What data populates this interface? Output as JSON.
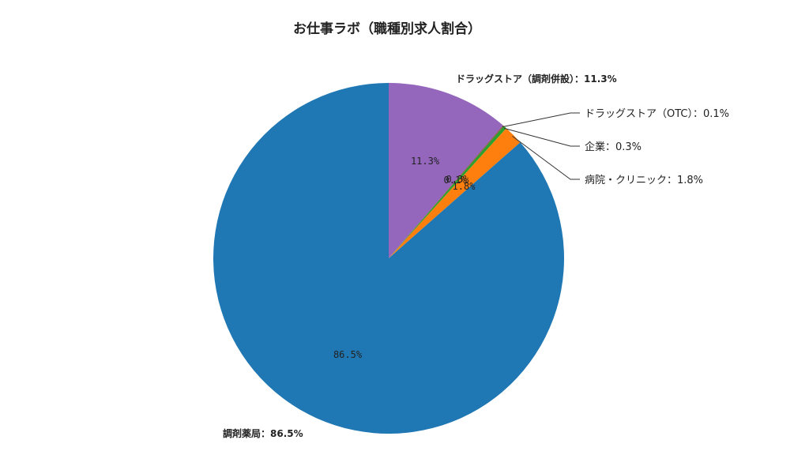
{
  "chart_data": {
    "type": "pie",
    "title": "お仕事ラボ（職種別求人割合）",
    "start_angle_deg": 90,
    "direction": "clockwise",
    "slices": [
      {
        "name": "ドラッグストア（調剤併設）",
        "value": 11.3,
        "color": "#9467bd",
        "inner_label": "11.3%",
        "outer_label": "ドラッグストア（調剤併設）：11.3%"
      },
      {
        "name": "ドラッグストア（OTC）",
        "value": 0.1,
        "color": "#8c564b",
        "inner_label": "0.1%",
        "outer_label": "ドラッグストア（OTC）：0.1%"
      },
      {
        "name": "企業",
        "value": 0.3,
        "color": "#2ca02c",
        "inner_label": "0.3%",
        "outer_label": "企業：0.3%"
      },
      {
        "name": "病院・クリニック",
        "value": 1.8,
        "color": "#ff7f0e",
        "inner_label": "1.8%",
        "outer_label": "病院・クリニック：1.8%"
      },
      {
        "name": "調剤薬局",
        "value": 86.5,
        "color": "#1f77b4",
        "inner_label": "86.5%",
        "outer_label": "調剤薬局：86.5%"
      }
    ]
  }
}
